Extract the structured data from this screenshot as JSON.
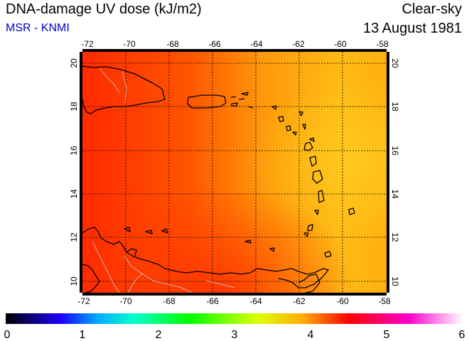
{
  "header": {
    "title": "DNA-damage UV dose (kJ/m2)",
    "source": "MSR - KNMI",
    "condition": "Clear-sky",
    "date": "13 August 1981"
  },
  "map": {
    "lon_range": [
      -72,
      -58
    ],
    "lat_range": [
      9.5,
      20.5
    ],
    "lon_ticks": [
      "-72",
      "-70",
      "-68",
      "-66",
      "-64",
      "-62",
      "-60",
      "-58"
    ],
    "lat_ticks": [
      "10",
      "12",
      "14",
      "16",
      "18",
      "20"
    ],
    "colors": {
      "low": "#ffc21a",
      "mid": "#ff7a00",
      "high": "#ff2a00",
      "coast": "#000000",
      "border": "#cccccc"
    }
  },
  "colorbar": {
    "ticks": [
      "0",
      "1",
      "2",
      "3",
      "4",
      "5",
      "6"
    ],
    "colors": [
      "#000000",
      "#1a00ff",
      "#00ffff",
      "#00ff00",
      "#ffff00",
      "#ff0000",
      "#ff00ff",
      "#ffffff"
    ]
  }
}
